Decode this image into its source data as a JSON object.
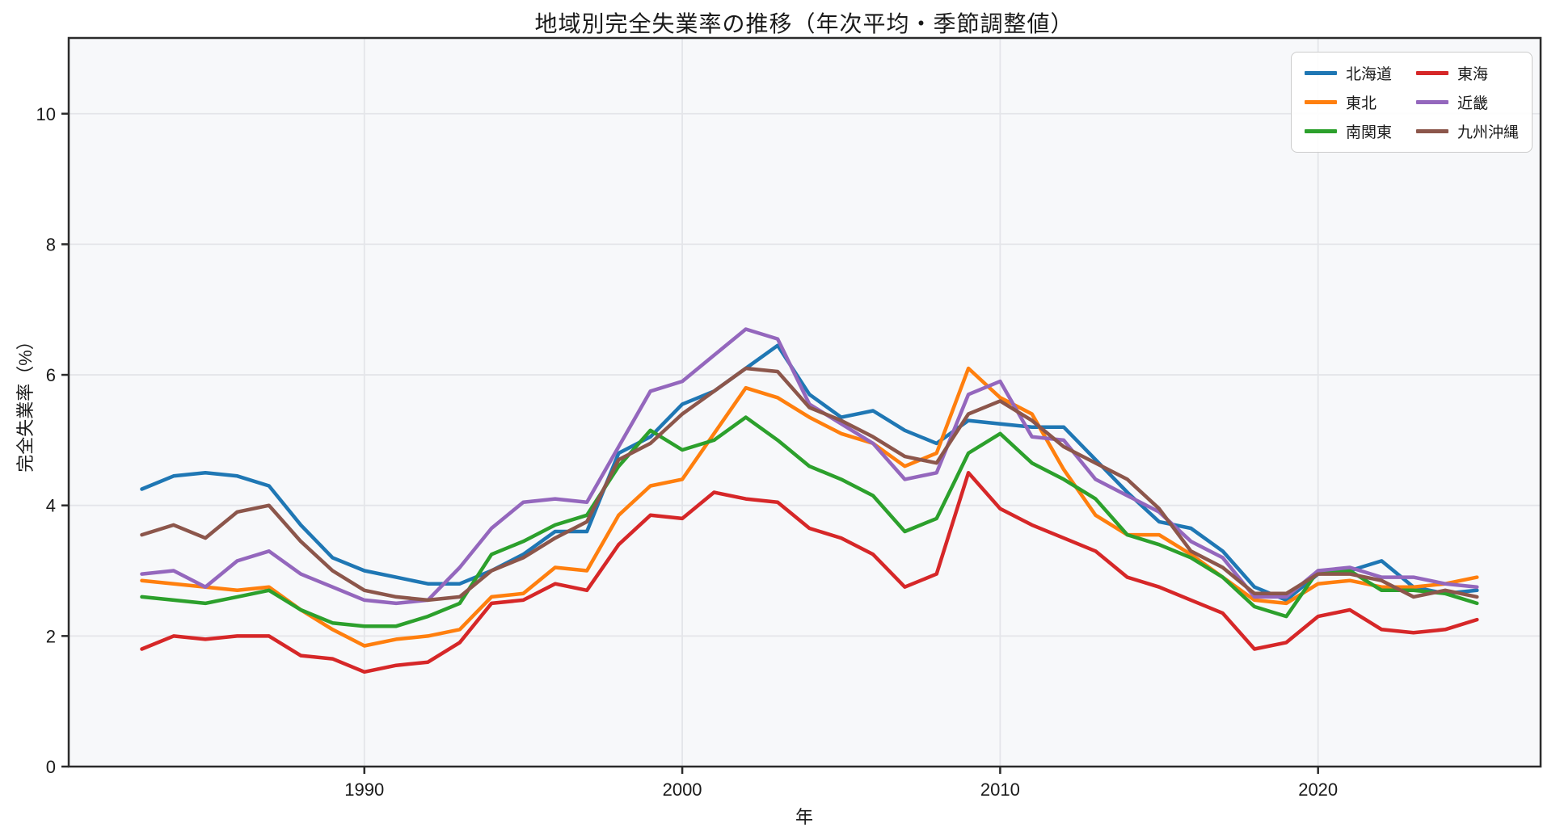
{
  "title": "地域別完全失業率の推移（年次平均・季節調整値）",
  "axes": {
    "x_label": "年",
    "y_label": "完全失業率（%）",
    "x_ticks": [
      "1990",
      "2000",
      "2010",
      "2020"
    ],
    "x_tick_values": [
      1990,
      2000,
      2010,
      2020
    ],
    "y_ticks": [
      "0",
      "2",
      "4",
      "6",
      "8",
      "10"
    ],
    "y_tick_values": [
      0,
      2,
      4,
      6,
      8,
      10
    ]
  },
  "style": {
    "plot_bg": "#f7f8fa",
    "grid_color": "#e4e5e9",
    "spine_color": "#2b2b2b",
    "text_color": "#1a1a1a",
    "line_width": 4.5
  },
  "chart_data": {
    "type": "line",
    "title": "地域別完全失業率の推移（年次平均・季節調整値）",
    "xlabel": "年",
    "ylabel": "完全失業率（%）",
    "x_range": [
      1980.7,
      2027.0
    ],
    "y_range": [
      0,
      11.16
    ],
    "grid": true,
    "legend_position": "upper right",
    "x": [
      1983,
      1984,
      1985,
      1986,
      1987,
      1988,
      1989,
      1990,
      1991,
      1992,
      1993,
      1994,
      1995,
      1996,
      1997,
      1998,
      1999,
      2000,
      2001,
      2002,
      2003,
      2004,
      2005,
      2006,
      2007,
      2008,
      2009,
      2010,
      2011,
      2012,
      2013,
      2014,
      2015,
      2016,
      2017,
      2018,
      2019,
      2020,
      2021,
      2022,
      2023,
      2024,
      2025
    ],
    "series": [
      {
        "name": "北海道",
        "color": "#1f77b4",
        "values": [
          4.25,
          4.45,
          4.5,
          4.45,
          4.3,
          3.7,
          3.2,
          3.0,
          2.9,
          2.8,
          2.8,
          3.0,
          3.25,
          3.6,
          3.6,
          4.8,
          5.05,
          5.55,
          5.75,
          6.1,
          6.45,
          5.7,
          5.35,
          5.45,
          5.15,
          4.95,
          5.3,
          5.25,
          5.2,
          5.2,
          4.7,
          4.2,
          3.75,
          3.65,
          3.3,
          2.75,
          2.55,
          2.95,
          3.0,
          3.15,
          2.75,
          2.65,
          2.7
        ]
      },
      {
        "name": "東北",
        "color": "#ff7f0e",
        "values": [
          2.85,
          2.8,
          2.75,
          2.7,
          2.75,
          2.4,
          2.1,
          1.85,
          1.95,
          2.0,
          2.1,
          2.6,
          2.65,
          3.05,
          3.0,
          3.85,
          4.3,
          4.4,
          5.1,
          5.8,
          5.65,
          5.35,
          5.1,
          4.95,
          4.6,
          4.8,
          6.1,
          5.65,
          5.4,
          4.55,
          3.85,
          3.55,
          3.55,
          3.25,
          2.9,
          2.55,
          2.5,
          2.8,
          2.85,
          2.75,
          2.75,
          2.8,
          2.9
        ]
      },
      {
        "name": "南関東",
        "color": "#2ca02c",
        "values": [
          2.6,
          2.55,
          2.5,
          2.6,
          2.7,
          2.4,
          2.2,
          2.15,
          2.15,
          2.3,
          2.5,
          3.25,
          3.45,
          3.7,
          3.85,
          4.6,
          5.15,
          4.85,
          5.0,
          5.35,
          5.0,
          4.6,
          4.4,
          4.15,
          3.6,
          3.8,
          4.8,
          5.1,
          4.65,
          4.4,
          4.1,
          3.55,
          3.4,
          3.2,
          2.9,
          2.45,
          2.3,
          3.0,
          3.0,
          2.7,
          2.7,
          2.65,
          2.5
        ]
      },
      {
        "name": "東海",
        "color": "#d62728",
        "values": [
          1.8,
          2.0,
          1.95,
          2.0,
          2.0,
          1.7,
          1.65,
          1.45,
          1.55,
          1.6,
          1.9,
          2.5,
          2.55,
          2.8,
          2.7,
          3.4,
          3.85,
          3.8,
          4.2,
          4.1,
          4.05,
          3.65,
          3.5,
          3.25,
          2.75,
          2.95,
          4.5,
          3.95,
          3.7,
          3.5,
          3.3,
          2.9,
          2.75,
          2.55,
          2.35,
          1.8,
          1.9,
          2.3,
          2.4,
          2.1,
          2.05,
          2.1,
          2.25
        ]
      },
      {
        "name": "近畿",
        "color": "#9467bd",
        "values": [
          2.95,
          3.0,
          2.75,
          3.15,
          3.3,
          2.95,
          2.75,
          2.55,
          2.5,
          2.55,
          3.05,
          3.65,
          4.05,
          4.1,
          4.05,
          4.9,
          5.75,
          5.9,
          6.3,
          6.7,
          6.55,
          5.55,
          5.25,
          4.95,
          4.4,
          4.5,
          5.7,
          5.9,
          5.05,
          5.0,
          4.4,
          4.15,
          3.9,
          3.45,
          3.2,
          2.6,
          2.6,
          3.0,
          3.05,
          2.9,
          2.9,
          2.8,
          2.75
        ]
      },
      {
        "name": "九州沖縄",
        "color": "#8c564b",
        "values": [
          3.55,
          3.7,
          3.5,
          3.9,
          4.0,
          3.45,
          3.0,
          2.7,
          2.6,
          2.55,
          2.6,
          3.0,
          3.2,
          3.5,
          3.75,
          4.7,
          4.95,
          5.4,
          5.75,
          6.1,
          6.05,
          5.5,
          5.3,
          5.05,
          4.75,
          4.65,
          5.4,
          5.6,
          5.3,
          4.9,
          4.65,
          4.4,
          3.95,
          3.3,
          3.05,
          2.65,
          2.65,
          2.95,
          2.95,
          2.85,
          2.6,
          2.7,
          2.6
        ]
      }
    ]
  }
}
